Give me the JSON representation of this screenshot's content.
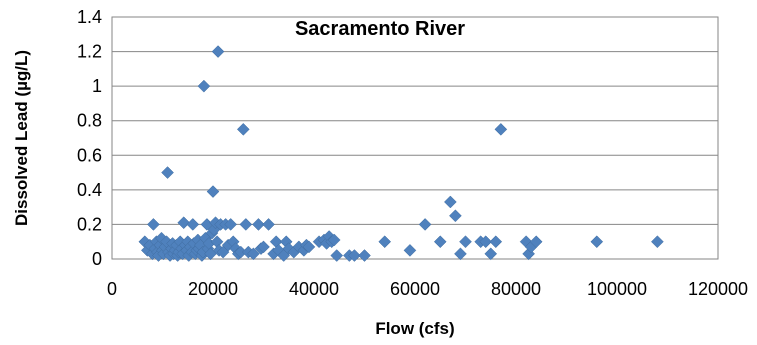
{
  "chart_data": {
    "type": "scatter",
    "title": "Sacramento River",
    "xlabel": "Flow (cfs)",
    "ylabel": "Dissolved Lead (µg/L)",
    "xlim": [
      0,
      120000
    ],
    "ylim": [
      0,
      1.4
    ],
    "xticks": [
      0,
      20000,
      40000,
      60000,
      80000,
      100000,
      120000
    ],
    "xtick_labels": [
      "0",
      "20000",
      "40000",
      "60000",
      "80000",
      "100000",
      "120000"
    ],
    "yticks": [
      0,
      0.2,
      0.4,
      0.6,
      0.8,
      1,
      1.2,
      1.4
    ],
    "ytick_labels": [
      "0",
      "0.2",
      "0.4",
      "0.6",
      "0.8",
      "1",
      "1.2",
      "1.4"
    ],
    "grid": "horizontal",
    "legend": "none",
    "marker_color": "#4F81BD",
    "points": [
      [
        6500,
        0.1
      ],
      [
        7000,
        0.05
      ],
      [
        7500,
        0.08
      ],
      [
        8000,
        0.03
      ],
      [
        8200,
        0.2
      ],
      [
        8500,
        0.06
      ],
      [
        8800,
        0.1
      ],
      [
        9000,
        0.04
      ],
      [
        9200,
        0.02
      ],
      [
        9500,
        0.08
      ],
      [
        9800,
        0.12
      ],
      [
        10000,
        0.05
      ],
      [
        10200,
        0.03
      ],
      [
        10500,
        0.07
      ],
      [
        10800,
        0.1
      ],
      [
        11000,
        0.5
      ],
      [
        11200,
        0.04
      ],
      [
        11500,
        0.02
      ],
      [
        11800,
        0.06
      ],
      [
        12000,
        0.09
      ],
      [
        12200,
        0.03
      ],
      [
        12500,
        0.05
      ],
      [
        12800,
        0.08
      ],
      [
        13000,
        0.02
      ],
      [
        13200,
        0.04
      ],
      [
        13500,
        0.1
      ],
      [
        13800,
        0.06
      ],
      [
        14000,
        0.03
      ],
      [
        14200,
        0.21
      ],
      [
        14500,
        0.08
      ],
      [
        14800,
        0.05
      ],
      [
        15000,
        0.1
      ],
      [
        15200,
        0.02
      ],
      [
        15500,
        0.07
      ],
      [
        15800,
        0.04
      ],
      [
        16000,
        0.2
      ],
      [
        16200,
        0.09
      ],
      [
        16500,
        0.03
      ],
      [
        16800,
        0.05
      ],
      [
        17000,
        0.11
      ],
      [
        17200,
        0.06
      ],
      [
        17500,
        0.08
      ],
      [
        17800,
        0.02
      ],
      [
        18000,
        0.04
      ],
      [
        18200,
        1.0
      ],
      [
        18500,
        0.12
      ],
      [
        18800,
        0.2
      ],
      [
        19000,
        0.06
      ],
      [
        19200,
        0.09
      ],
      [
        19500,
        0.03
      ],
      [
        19800,
        0.15
      ],
      [
        20000,
        0.39
      ],
      [
        20200,
        0.17
      ],
      [
        20500,
        0.21
      ],
      [
        20800,
        0.1
      ],
      [
        21000,
        1.2
      ],
      [
        21200,
        0.05
      ],
      [
        21500,
        0.2
      ],
      [
        22000,
        0.04
      ],
      [
        22500,
        0.2
      ],
      [
        23000,
        0.08
      ],
      [
        23500,
        0.2
      ],
      [
        24000,
        0.1
      ],
      [
        24500,
        0.06
      ],
      [
        25000,
        0.03
      ],
      [
        25500,
        0.04
      ],
      [
        26000,
        0.75
      ],
      [
        26500,
        0.2
      ],
      [
        27000,
        0.04
      ],
      [
        28000,
        0.03
      ],
      [
        29000,
        0.2
      ],
      [
        29500,
        0.06
      ],
      [
        30000,
        0.07
      ],
      [
        31000,
        0.2
      ],
      [
        32000,
        0.03
      ],
      [
        32500,
        0.1
      ],
      [
        33000,
        0.05
      ],
      [
        34000,
        0.02
      ],
      [
        34500,
        0.1
      ],
      [
        35000,
        0.06
      ],
      [
        36000,
        0.04
      ],
      [
        37000,
        0.07
      ],
      [
        38000,
        0.05
      ],
      [
        38500,
        0.08
      ],
      [
        39000,
        0.07
      ],
      [
        41000,
        0.1
      ],
      [
        42000,
        0.11
      ],
      [
        42500,
        0.09
      ],
      [
        43000,
        0.13
      ],
      [
        43500,
        0.1
      ],
      [
        44000,
        0.11
      ],
      [
        44500,
        0.02
      ],
      [
        47000,
        0.02
      ],
      [
        48000,
        0.02
      ],
      [
        50000,
        0.02
      ],
      [
        54000,
        0.1
      ],
      [
        59000,
        0.05
      ],
      [
        62000,
        0.2
      ],
      [
        65000,
        0.1
      ],
      [
        67000,
        0.33
      ],
      [
        68000,
        0.25
      ],
      [
        69000,
        0.03
      ],
      [
        70000,
        0.1
      ],
      [
        73000,
        0.1
      ],
      [
        74000,
        0.1
      ],
      [
        75000,
        0.03
      ],
      [
        76000,
        0.1
      ],
      [
        77000,
        0.75
      ],
      [
        82000,
        0.1
      ],
      [
        82500,
        0.03
      ],
      [
        83000,
        0.07
      ],
      [
        84000,
        0.1
      ],
      [
        96000,
        0.1
      ],
      [
        108000,
        0.1
      ]
    ]
  }
}
